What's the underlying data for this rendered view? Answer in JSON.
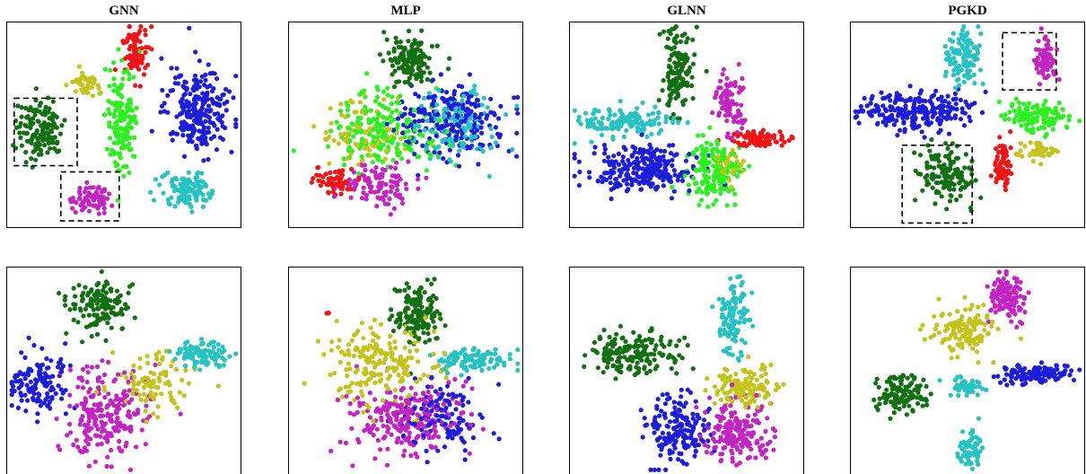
{
  "chart_data": {
    "type": "scatter",
    "column_titles": [
      "GNN",
      "MLP",
      "GLNN",
      "PGKD"
    ],
    "colors": {
      "dark-green": "#127012",
      "red": "#f01414",
      "olive": "#c4c31c",
      "green": "#2cf01f",
      "blue": "#1e1ed8",
      "cyan": "#27c2c2",
      "magenta": "#c225c2"
    },
    "rows": [
      {
        "panels": [
          {
            "method": "GNN",
            "clusters": [
              {
                "color": "dark-green",
                "cx": 0.14,
                "cy": 0.52,
                "rx": 0.1,
                "ry": 0.15,
                "n": 140
              },
              {
                "color": "red",
                "cx": 0.55,
                "cy": 0.15,
                "rx": 0.05,
                "ry": 0.14,
                "n": 90
              },
              {
                "color": "olive",
                "cx": 0.34,
                "cy": 0.3,
                "rx": 0.06,
                "ry": 0.05,
                "n": 40
              },
              {
                "color": "green",
                "cx": 0.49,
                "cy": 0.46,
                "rx": 0.07,
                "ry": 0.25,
                "n": 150
              },
              {
                "color": "blue",
                "cx": 0.82,
                "cy": 0.43,
                "rx": 0.14,
                "ry": 0.2,
                "n": 260
              },
              {
                "color": "cyan",
                "cx": 0.76,
                "cy": 0.82,
                "rx": 0.1,
                "ry": 0.09,
                "n": 110
              },
              {
                "color": "magenta",
                "cx": 0.36,
                "cy": 0.86,
                "rx": 0.08,
                "ry": 0.07,
                "n": 80
              }
            ],
            "highlight_boxes": [
              [
                0.03,
                0.37,
                0.3,
                0.7
              ],
              [
                0.23,
                0.73,
                0.48,
                0.97
              ]
            ]
          },
          {
            "method": "MLP",
            "clusters": [
              {
                "color": "dark-green",
                "cx": 0.52,
                "cy": 0.18,
                "rx": 0.1,
                "ry": 0.13,
                "n": 130
              },
              {
                "color": "red",
                "cx": 0.2,
                "cy": 0.78,
                "rx": 0.08,
                "ry": 0.06,
                "n": 60
              },
              {
                "color": "olive",
                "cx": 0.3,
                "cy": 0.55,
                "rx": 0.18,
                "ry": 0.15,
                "n": 80
              },
              {
                "color": "green",
                "cx": 0.4,
                "cy": 0.52,
                "rx": 0.25,
                "ry": 0.18,
                "n": 200
              },
              {
                "color": "blue",
                "cx": 0.7,
                "cy": 0.48,
                "rx": 0.22,
                "ry": 0.17,
                "n": 220
              },
              {
                "color": "cyan",
                "cx": 0.72,
                "cy": 0.5,
                "rx": 0.2,
                "ry": 0.2,
                "n": 130
              },
              {
                "color": "magenta",
                "cx": 0.38,
                "cy": 0.8,
                "rx": 0.14,
                "ry": 0.12,
                "n": 110
              }
            ]
          },
          {
            "method": "GLNN",
            "clusters": [
              {
                "color": "dark-green",
                "cx": 0.46,
                "cy": 0.23,
                "rx": 0.07,
                "ry": 0.2,
                "n": 130
              },
              {
                "color": "red",
                "cx": 0.82,
                "cy": 0.57,
                "rx": 0.12,
                "ry": 0.04,
                "n": 80
              },
              {
                "color": "olive",
                "cx": 0.68,
                "cy": 0.7,
                "rx": 0.06,
                "ry": 0.08,
                "n": 40
              },
              {
                "color": "green",
                "cx": 0.62,
                "cy": 0.72,
                "rx": 0.12,
                "ry": 0.14,
                "n": 170
              },
              {
                "color": "blue",
                "cx": 0.3,
                "cy": 0.72,
                "rx": 0.22,
                "ry": 0.12,
                "n": 250
              },
              {
                "color": "cyan",
                "cx": 0.25,
                "cy": 0.48,
                "rx": 0.2,
                "ry": 0.07,
                "n": 130
              },
              {
                "color": "magenta",
                "cx": 0.68,
                "cy": 0.4,
                "rx": 0.06,
                "ry": 0.14,
                "n": 90
              }
            ]
          },
          {
            "method": "PGKD",
            "clusters": [
              {
                "color": "dark-green",
                "cx": 0.4,
                "cy": 0.75,
                "rx": 0.12,
                "ry": 0.14,
                "n": 140
              },
              {
                "color": "red",
                "cx": 0.65,
                "cy": 0.7,
                "rx": 0.04,
                "ry": 0.13,
                "n": 70
              },
              {
                "color": "olive",
                "cx": 0.8,
                "cy": 0.63,
                "rx": 0.08,
                "ry": 0.05,
                "n": 40
              },
              {
                "color": "green",
                "cx": 0.8,
                "cy": 0.46,
                "rx": 0.14,
                "ry": 0.07,
                "n": 130
              },
              {
                "color": "blue",
                "cx": 0.28,
                "cy": 0.43,
                "rx": 0.25,
                "ry": 0.09,
                "n": 230
              },
              {
                "color": "cyan",
                "cx": 0.48,
                "cy": 0.17,
                "rx": 0.07,
                "ry": 0.13,
                "n": 110
              },
              {
                "color": "magenta",
                "cx": 0.83,
                "cy": 0.18,
                "rx": 0.05,
                "ry": 0.1,
                "n": 70
              }
            ],
            "highlight_boxes": [
              [
                0.65,
                0.05,
                0.88,
                0.33
              ],
              [
                0.22,
                0.6,
                0.52,
                0.98
              ]
            ]
          }
        ]
      },
      {
        "panels": [
          {
            "method": "GNN",
            "clusters": [
              {
                "color": "dark-green",
                "cx": 0.4,
                "cy": 0.19,
                "rx": 0.14,
                "ry": 0.12,
                "n": 140
              },
              {
                "color": "blue",
                "cx": 0.14,
                "cy": 0.55,
                "rx": 0.12,
                "ry": 0.15,
                "n": 130
              },
              {
                "color": "cyan",
                "cx": 0.83,
                "cy": 0.42,
                "rx": 0.12,
                "ry": 0.06,
                "n": 100
              },
              {
                "color": "olive",
                "cx": 0.62,
                "cy": 0.55,
                "rx": 0.16,
                "ry": 0.14,
                "n": 90
              },
              {
                "color": "magenta",
                "cx": 0.42,
                "cy": 0.7,
                "rx": 0.18,
                "ry": 0.22,
                "n": 220
              }
            ]
          },
          {
            "method": "MLP",
            "clusters": [
              {
                "color": "dark-green",
                "cx": 0.55,
                "cy": 0.23,
                "rx": 0.1,
                "ry": 0.15,
                "n": 140
              },
              {
                "color": "olive",
                "cx": 0.4,
                "cy": 0.47,
                "rx": 0.24,
                "ry": 0.2,
                "n": 200
              },
              {
                "color": "cyan",
                "cx": 0.8,
                "cy": 0.45,
                "rx": 0.17,
                "ry": 0.05,
                "n": 100
              },
              {
                "color": "magenta",
                "cx": 0.5,
                "cy": 0.72,
                "rx": 0.22,
                "ry": 0.17,
                "n": 240
              },
              {
                "color": "blue",
                "cx": 0.65,
                "cy": 0.72,
                "rx": 0.18,
                "ry": 0.17,
                "n": 120
              },
              {
                "color": "red",
                "cx": 0.17,
                "cy": 0.22,
                "rx": 0.01,
                "ry": 0.01,
                "n": 4
              }
            ]
          },
          {
            "method": "GLNN",
            "clusters": [
              {
                "color": "cyan",
                "cx": 0.7,
                "cy": 0.25,
                "rx": 0.07,
                "ry": 0.18,
                "n": 110
              },
              {
                "color": "dark-green",
                "cx": 0.28,
                "cy": 0.42,
                "rx": 0.2,
                "ry": 0.1,
                "n": 170
              },
              {
                "color": "olive",
                "cx": 0.75,
                "cy": 0.58,
                "rx": 0.14,
                "ry": 0.1,
                "n": 120
              },
              {
                "color": "blue",
                "cx": 0.45,
                "cy": 0.78,
                "rx": 0.14,
                "ry": 0.16,
                "n": 180
              },
              {
                "color": "magenta",
                "cx": 0.72,
                "cy": 0.8,
                "rx": 0.15,
                "ry": 0.14,
                "n": 190
              }
            ]
          },
          {
            "method": "PGKD",
            "clusters": [
              {
                "color": "magenta",
                "cx": 0.67,
                "cy": 0.14,
                "rx": 0.08,
                "ry": 0.1,
                "n": 120
              },
              {
                "color": "olive",
                "cx": 0.48,
                "cy": 0.3,
                "rx": 0.13,
                "ry": 0.11,
                "n": 120
              },
              {
                "color": "dark-green",
                "cx": 0.22,
                "cy": 0.62,
                "rx": 0.12,
                "ry": 0.09,
                "n": 120
              },
              {
                "color": "cyan",
                "cx": 0.5,
                "cy": 0.58,
                "rx": 0.07,
                "ry": 0.04,
                "n": 50
              },
              {
                "color": "blue",
                "cx": 0.78,
                "cy": 0.51,
                "rx": 0.15,
                "ry": 0.05,
                "n": 120
              },
              {
                "color": "cyan",
                "cx": 0.52,
                "cy": 0.87,
                "rx": 0.05,
                "ry": 0.09,
                "n": 60
              }
            ]
          }
        ]
      }
    ]
  }
}
